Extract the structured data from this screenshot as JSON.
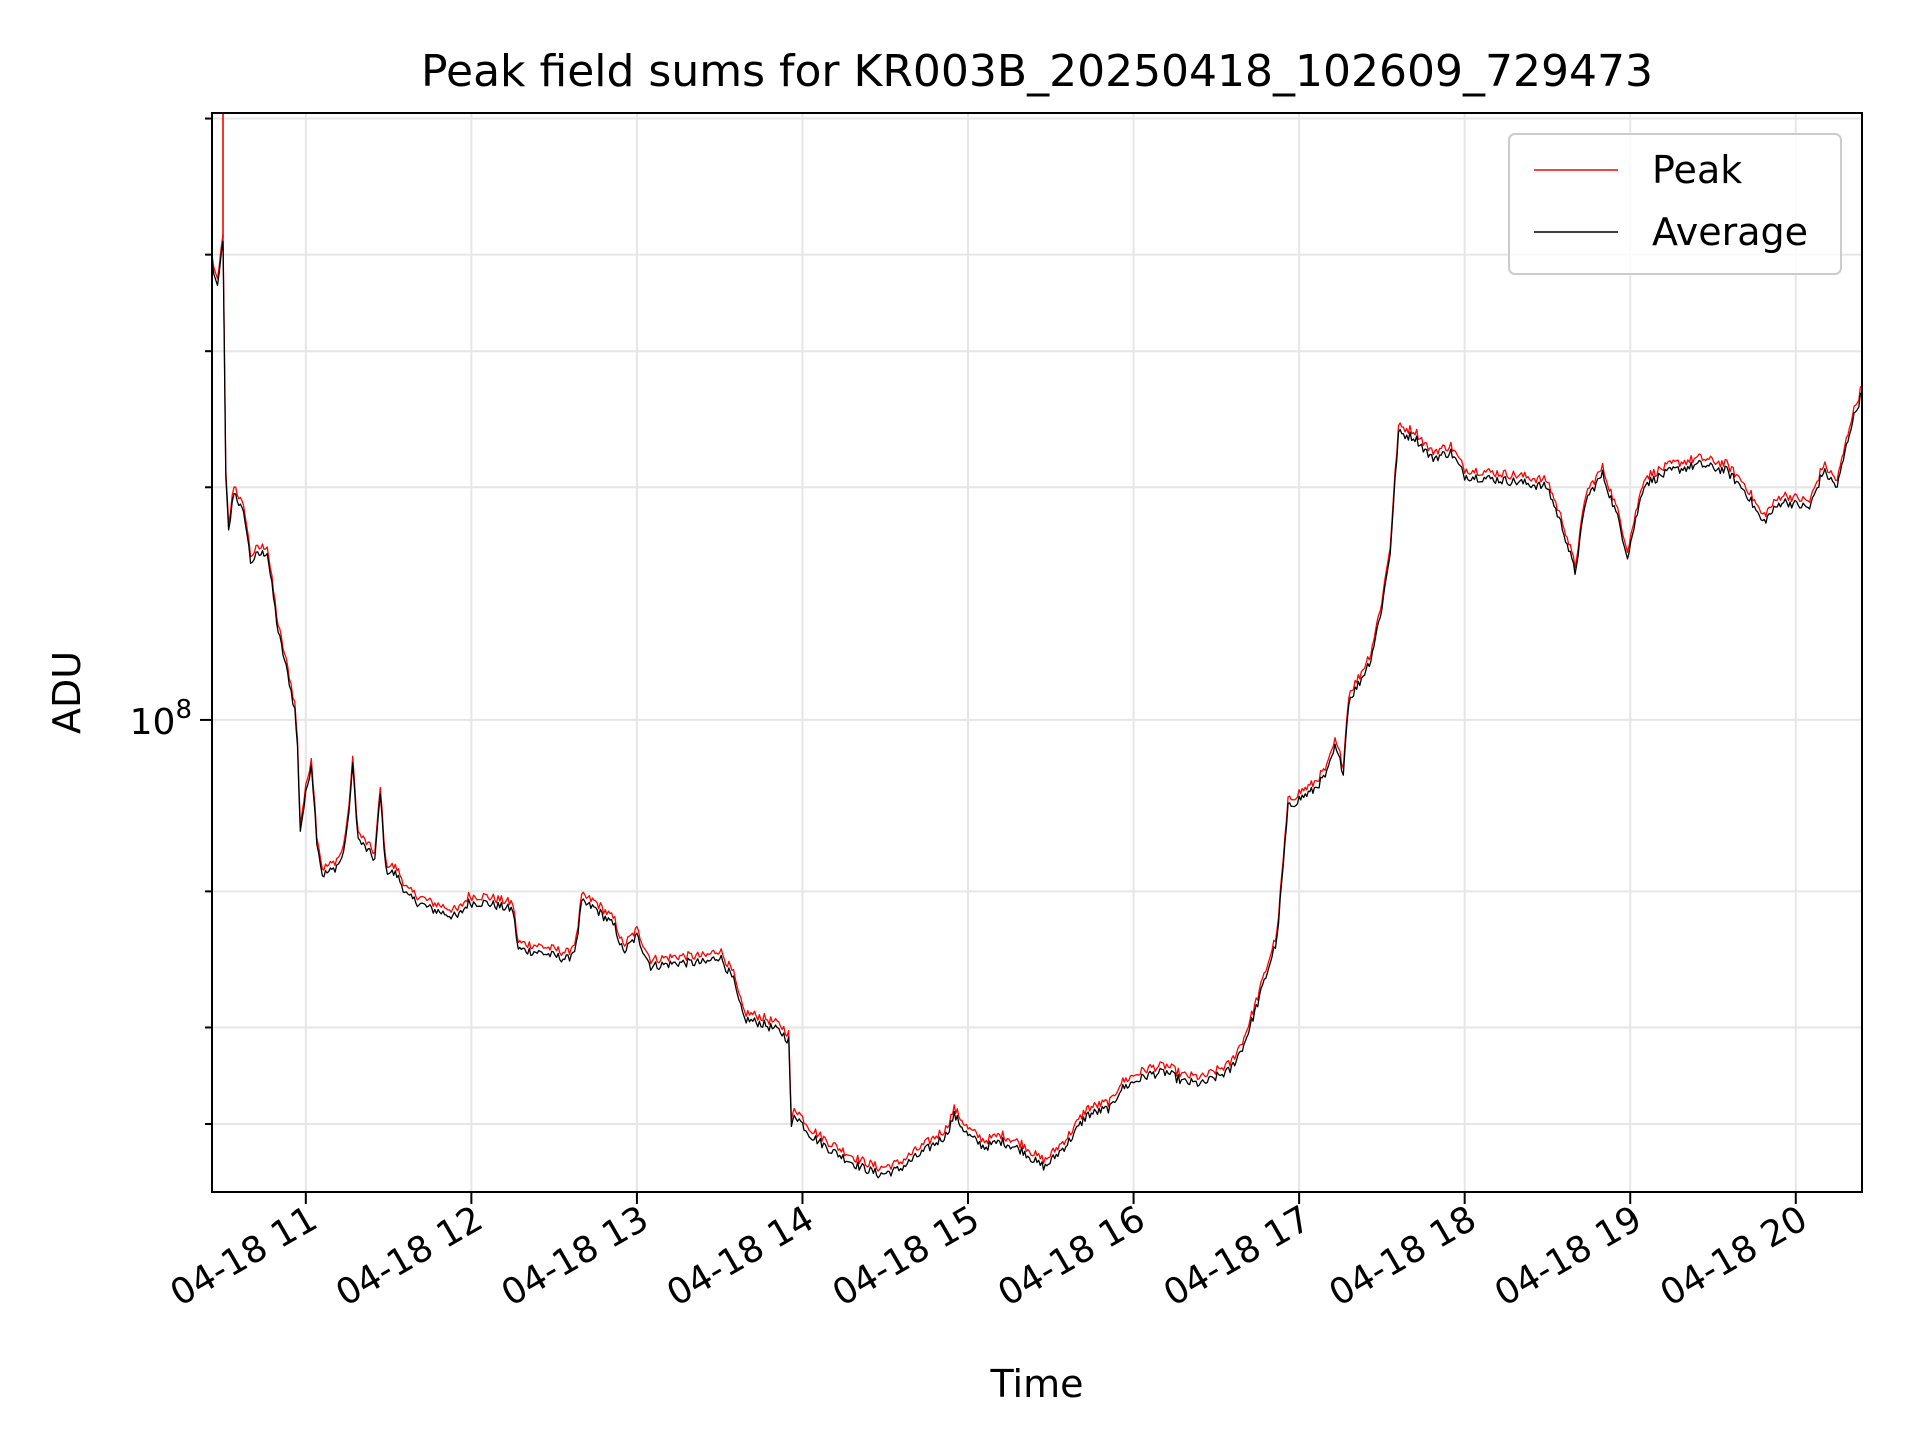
{
  "chart_data": {
    "type": "line",
    "title": "Peak field sums for KR003B_20250418_102609_729473",
    "xlabel": "Time",
    "ylabel": "ADU",
    "y_scale": "log",
    "ylim": [
      24500000,
      610000000
    ],
    "xlim": [
      "2025-04-18 10:26",
      "2025-04-18 20:24"
    ],
    "grid": true,
    "legend_position": "top-right",
    "x_ticks": [
      {
        "x": "2025-04-18 11:00",
        "label": "04-18 11"
      },
      {
        "x": "2025-04-18 12:00",
        "label": "04-18 12"
      },
      {
        "x": "2025-04-18 13:00",
        "label": "04-18 13"
      },
      {
        "x": "2025-04-18 14:00",
        "label": "04-18 14"
      },
      {
        "x": "2025-04-18 15:00",
        "label": "04-18 15"
      },
      {
        "x": "2025-04-18 16:00",
        "label": "04-18 16"
      },
      {
        "x": "2025-04-18 17:00",
        "label": "04-18 17"
      },
      {
        "x": "2025-04-18 18:00",
        "label": "04-18 18"
      },
      {
        "x": "2025-04-18 19:00",
        "label": "04-18 19"
      },
      {
        "x": "2025-04-18 20:00",
        "label": "04-18 20"
      }
    ],
    "y_major_ticks": [
      {
        "y": 100000000,
        "label_base": "10",
        "label_exp": "8"
      }
    ],
    "y_minor_ticks": [
      30000000,
      40000000,
      60000000,
      200000000,
      300000000,
      400000000,
      600000000
    ],
    "series": [
      {
        "name": "Average",
        "color": "#000000",
        "points": [
          [
            "2025-04-18 10:26",
            390000000
          ],
          [
            "2025-04-18 10:28",
            360000000
          ],
          [
            "2025-04-18 10:30",
            420000000
          ],
          [
            "2025-04-18 10:31",
            205000000
          ],
          [
            "2025-04-18 10:32",
            175000000
          ],
          [
            "2025-04-18 10:34",
            198000000
          ],
          [
            "2025-04-18 10:38",
            182000000
          ],
          [
            "2025-04-18 10:40",
            160000000
          ],
          [
            "2025-04-18 10:42",
            163000000
          ],
          [
            "2025-04-18 10:46",
            165000000
          ],
          [
            "2025-04-18 10:50",
            130000000
          ],
          [
            "2025-04-18 10:54",
            112000000
          ],
          [
            "2025-04-18 10:56",
            103000000
          ],
          [
            "2025-04-18 10:57",
            92000000
          ],
          [
            "2025-04-18 10:58",
            72000000
          ],
          [
            "2025-04-18 11:00",
            80000000
          ],
          [
            "2025-04-18 11:02",
            88000000
          ],
          [
            "2025-04-18 11:04",
            70000000
          ],
          [
            "2025-04-18 11:06",
            63000000
          ],
          [
            "2025-04-18 11:10",
            64000000
          ],
          [
            "2025-04-18 11:13",
            66000000
          ],
          [
            "2025-04-18 11:15",
            72000000
          ],
          [
            "2025-04-18 11:17",
            87000000
          ],
          [
            "2025-04-18 11:19",
            70000000
          ],
          [
            "2025-04-18 11:22",
            68000000
          ],
          [
            "2025-04-18 11:25",
            66000000
          ],
          [
            "2025-04-18 11:27",
            80000000
          ],
          [
            "2025-04-18 11:29",
            64000000
          ],
          [
            "2025-04-18 11:33",
            63000000
          ],
          [
            "2025-04-18 11:37",
            59000000
          ],
          [
            "2025-04-18 11:45",
            57000000
          ],
          [
            "2025-04-18 11:55",
            55500000
          ],
          [
            "2025-04-18 11:59",
            58000000
          ],
          [
            "2025-04-18 12:05",
            58000000
          ],
          [
            "2025-04-18 12:15",
            56800000
          ],
          [
            "2025-04-18 12:17",
            50500000
          ],
          [
            "2025-04-18 12:25",
            50000000
          ],
          [
            "2025-04-18 12:35",
            49000000
          ],
          [
            "2025-04-18 12:38",
            51000000
          ],
          [
            "2025-04-18 12:40",
            58000000
          ],
          [
            "2025-04-18 12:45",
            57000000
          ],
          [
            "2025-04-18 12:52",
            54000000
          ],
          [
            "2025-04-18 12:55",
            50000000
          ],
          [
            "2025-04-18 13:00",
            52500000
          ],
          [
            "2025-04-18 13:05",
            48000000
          ],
          [
            "2025-04-18 13:15",
            48500000
          ],
          [
            "2025-04-18 13:25",
            48500000
          ],
          [
            "2025-04-18 13:30",
            49500000
          ],
          [
            "2025-04-18 13:35",
            46000000
          ],
          [
            "2025-04-18 13:37",
            43000000
          ],
          [
            "2025-04-18 13:39",
            41000000
          ],
          [
            "2025-04-18 13:45",
            40500000
          ],
          [
            "2025-04-18 13:52",
            39500000
          ],
          [
            "2025-04-18 13:55",
            38500000
          ],
          [
            "2025-04-18 13:56",
            29500000
          ],
          [
            "2025-04-18 13:57",
            31000000
          ],
          [
            "2025-04-18 14:03",
            29000000
          ],
          [
            "2025-04-18 14:10",
            27800000
          ],
          [
            "2025-04-18 14:20",
            26500000
          ],
          [
            "2025-04-18 14:28",
            25800000
          ],
          [
            "2025-04-18 14:35",
            26200000
          ],
          [
            "2025-04-18 14:45",
            27800000
          ],
          [
            "2025-04-18 14:52",
            29000000
          ],
          [
            "2025-04-18 14:55",
            30800000
          ],
          [
            "2025-04-18 15:00",
            29000000
          ],
          [
            "2025-04-18 15:06",
            28000000
          ],
          [
            "2025-04-18 15:12",
            28500000
          ],
          [
            "2025-04-18 15:20",
            27700000
          ],
          [
            "2025-04-18 15:25",
            26700000
          ],
          [
            "2025-04-18 15:28",
            26400000
          ],
          [
            "2025-04-18 15:36",
            28300000
          ],
          [
            "2025-04-18 15:43",
            30800000
          ],
          [
            "2025-04-18 15:52",
            31500000
          ],
          [
            "2025-04-18 15:55",
            33200000
          ],
          [
            "2025-04-18 16:00",
            34000000
          ],
          [
            "2025-04-18 16:06",
            34800000
          ],
          [
            "2025-04-18 16:12",
            35000000
          ],
          [
            "2025-04-18 16:18",
            34000000
          ],
          [
            "2025-04-18 16:25",
            33800000
          ],
          [
            "2025-04-18 16:35",
            35200000
          ],
          [
            "2025-04-18 16:40",
            38000000
          ],
          [
            "2025-04-18 16:45",
            43000000
          ],
          [
            "2025-04-18 16:52",
            52000000
          ],
          [
            "2025-04-18 16:56",
            77000000
          ],
          [
            "2025-04-18 17:00",
            79000000
          ],
          [
            "2025-04-18 17:05",
            81000000
          ],
          [
            "2025-04-18 17:10",
            85000000
          ],
          [
            "2025-04-18 17:13",
            92000000
          ],
          [
            "2025-04-18 17:16",
            86000000
          ],
          [
            "2025-04-18 17:18",
            106000000
          ],
          [
            "2025-04-18 17:22",
            112000000
          ],
          [
            "2025-04-18 17:26",
            120000000
          ],
          [
            "2025-04-18 17:30",
            140000000
          ],
          [
            "2025-04-18 17:33",
            165000000
          ],
          [
            "2025-04-18 17:36",
            235000000
          ],
          [
            "2025-04-18 17:42",
            232000000
          ],
          [
            "2025-04-18 17:48",
            218000000
          ],
          [
            "2025-04-18 17:55",
            222000000
          ],
          [
            "2025-04-18 18:00",
            207000000
          ],
          [
            "2025-04-18 18:10",
            205000000
          ],
          [
            "2025-04-18 18:20",
            203000000
          ],
          [
            "2025-04-18 18:30",
            200000000
          ],
          [
            "2025-04-18 18:36",
            175000000
          ],
          [
            "2025-04-18 18:40",
            155000000
          ],
          [
            "2025-04-18 18:44",
            193000000
          ],
          [
            "2025-04-18 18:50",
            208000000
          ],
          [
            "2025-04-18 18:56",
            180000000
          ],
          [
            "2025-04-18 18:59",
            163000000
          ],
          [
            "2025-04-18 19:05",
            202000000
          ],
          [
            "2025-04-18 19:15",
            210000000
          ],
          [
            "2025-04-18 19:25",
            214000000
          ],
          [
            "2025-04-18 19:35",
            210000000
          ],
          [
            "2025-04-18 19:42",
            197000000
          ],
          [
            "2025-04-18 19:48",
            180000000
          ],
          [
            "2025-04-18 19:55",
            192000000
          ],
          [
            "2025-04-18 20:05",
            188000000
          ],
          [
            "2025-04-18 20:10",
            210000000
          ],
          [
            "2025-04-18 20:15",
            200000000
          ],
          [
            "2025-04-18 20:20",
            240000000
          ],
          [
            "2025-04-18 20:24",
            265000000
          ]
        ]
      },
      {
        "name": "Peak",
        "color": "#ff0000",
        "y_factor": 1.02,
        "extra_points": [
          [
            "2025-04-18 10:30",
            420000000
          ],
          [
            "2025-04-18 10:30",
            610000000
          ],
          [
            "2025-04-18 10:31",
            610000000
          ]
        ]
      }
    ]
  }
}
